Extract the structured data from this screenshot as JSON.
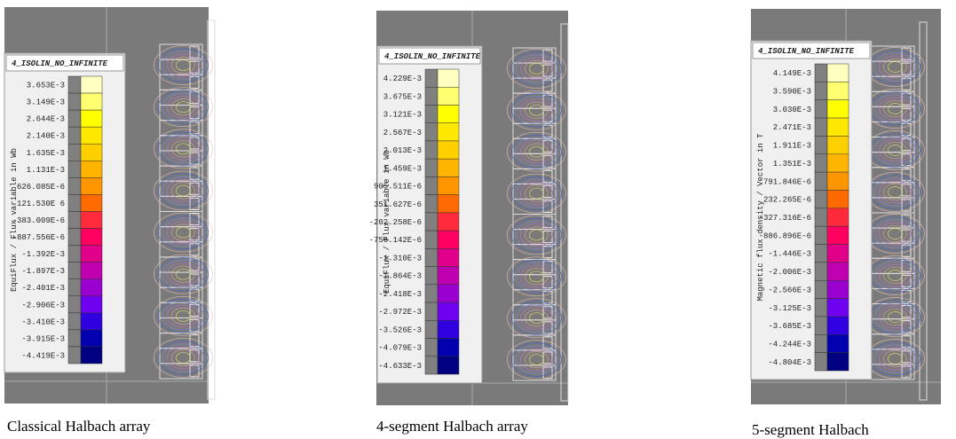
{
  "panels": [
    {
      "title": "4_ISOLIN_NO_INFINITE",
      "quantity": "EquiFlux / Flux variable in Wb",
      "levels": [
        "3.653E-3",
        "3.149E-3",
        "2.644E-3",
        "2.140E-3",
        "1.635E-3",
        "1.131E-3",
        "626.085E-6",
        "121.530E 6",
        "-383.009E-6",
        "-887.556E-6",
        "-1.392E-3",
        "-1.897E-3",
        "-2.401E-3",
        "-2.906E-3",
        "-3.410E-3",
        "-3.915E-3",
        "-4.419E-3"
      ],
      "caption": "Classical Halbach array"
    },
    {
      "title": "4_ISOLIN_NO_INFINITE",
      "quantity": "EquiFlux / Flux variable in Wb",
      "levels": [
        "4.229E-3",
        "3.675E-3",
        "3.121E-3",
        "2.567E-3",
        "2.013E-3",
        "1.459E-3",
        "905.511E-6",
        "351.627E-6",
        "-202.258E-6",
        "-756.142E-6",
        "-1.310E-3",
        "-1.864E-3",
        "-2.418E-3",
        "-2.972E-3",
        "-3.526E-3",
        "-4.079E-3",
        "-4.633E-3"
      ],
      "caption": "4-segment Halbach array"
    },
    {
      "title": "4_ISOLIN_NO_INFINITE",
      "quantity": "Magnetic flux density / Vector in T",
      "levels": [
        "4.149E-3",
        "3.590E-3",
        "3.030E-3",
        "2.471E-3",
        "1.911E-3",
        "1.351E-3",
        "791.846E-6",
        "232.265E-6",
        "-327.316E-6",
        "-886.896E-6",
        "-1.446E-3",
        "-2.006E-3",
        "-2.566E-3",
        "-3.125E-3",
        "-3.685E-3",
        "-4.244E-3",
        "-4.804E-3"
      ],
      "caption": "5-segment Halbach"
    }
  ]
}
